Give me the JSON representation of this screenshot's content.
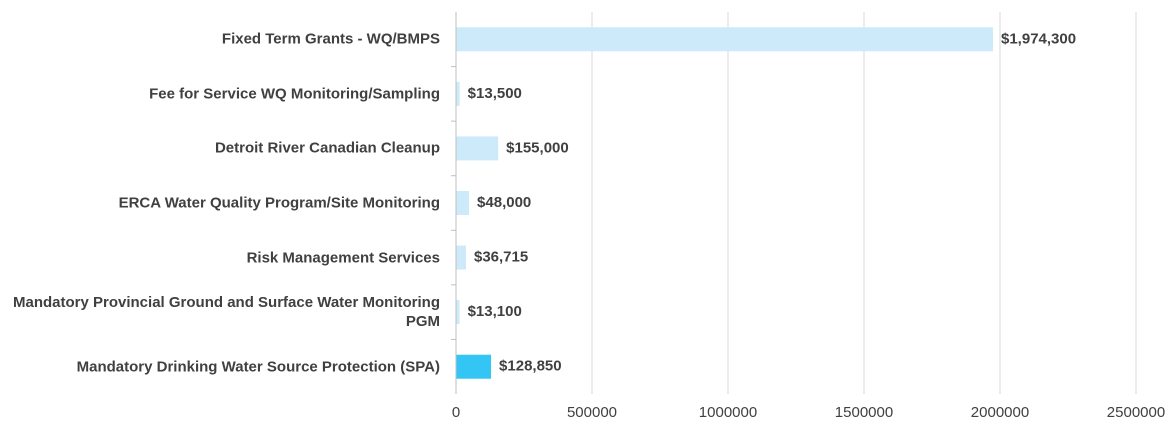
{
  "chart_data": {
    "type": "hbar",
    "categories": [
      "Fixed Term Grants - WQ/BMPS",
      "Fee for Service WQ Monitoring/Sampling",
      "Detroit River Canadian Cleanup",
      "ERCA Water Quality Program/Site Monitoring",
      "Risk Management Services",
      "Mandatory Provincial Ground and Surface Water Monitoring PGM",
      "Mandatory Drinking Water Source Protection (SPA)"
    ],
    "values": [
      1974300,
      13500,
      155000,
      48000,
      36715,
      13100,
      128850
    ],
    "value_labels": [
      "$1,974,300",
      "$13,500",
      "$155,000",
      "$48,000",
      "$36,715",
      "$13,100",
      "$128,850"
    ],
    "colors": [
      "#cdeafa",
      "#cdeafa",
      "#cdeafa",
      "#cdeafa",
      "#cdeafa",
      "#cdeafa",
      "#33c6f4"
    ],
    "xlim": [
      0,
      2500000
    ],
    "xticks": [
      0,
      500000,
      1000000,
      1500000,
      2000000,
      2500000
    ],
    "grid": true
  }
}
